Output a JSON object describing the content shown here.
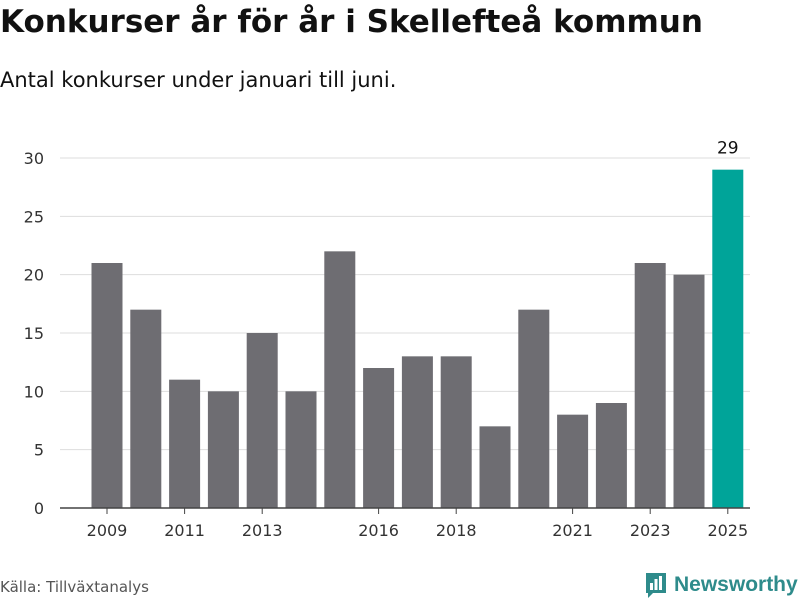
{
  "header": {
    "title": "Konkurser år för år i Skellefteå kommun",
    "subtitle": "Antal konkurser under januari till juni."
  },
  "footer": {
    "source": "Källa: Tillväxtanalys",
    "brand": "Newsworthy"
  },
  "colors": {
    "bar_default": "#6e6d72",
    "bar_highlight": "#00a499",
    "brand": "#2e8b8b"
  },
  "chart_data": {
    "type": "bar",
    "title": "",
    "xlabel": "",
    "ylabel": "",
    "categories": [
      "2009",
      "2010",
      "2011",
      "2012",
      "2013",
      "2014",
      "2015",
      "2016",
      "2017",
      "2018",
      "2019",
      "2020",
      "2021",
      "2022",
      "2023",
      "2024",
      "2025"
    ],
    "values": [
      21,
      17,
      11,
      10,
      15,
      10,
      22,
      12,
      13,
      13,
      7,
      17,
      8,
      9,
      21,
      20,
      29
    ],
    "x_tick_labels": [
      "2009",
      "2011",
      "2013",
      "2016",
      "2018",
      "2021",
      "2023",
      "2025"
    ],
    "y_ticks": [
      0,
      5,
      10,
      15,
      20,
      25,
      30
    ],
    "ylim": [
      0,
      30
    ],
    "grid": true,
    "highlight_category": "2025",
    "data_labels": [
      {
        "category": "2025",
        "text": "29"
      }
    ]
  }
}
